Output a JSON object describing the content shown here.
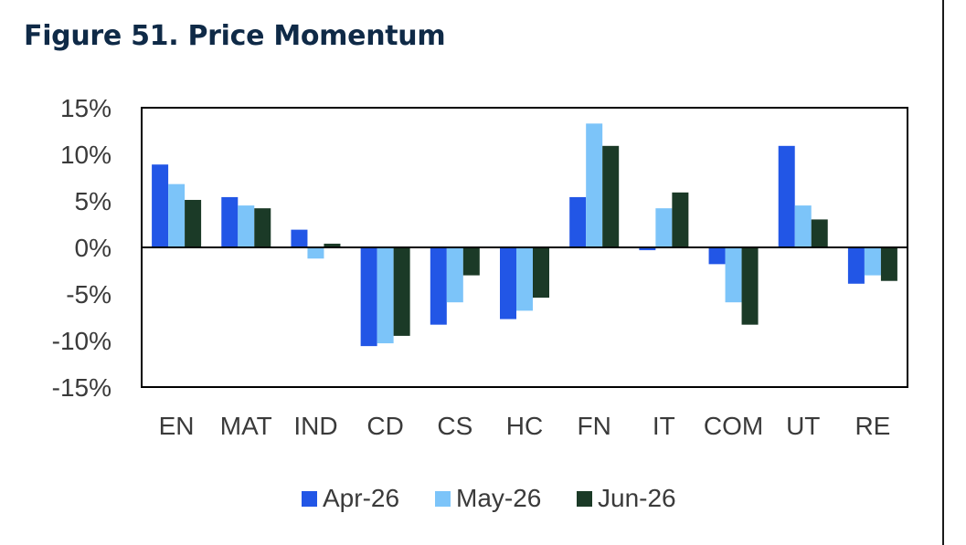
{
  "title": "Figure 51. Price Momentum",
  "colors": {
    "apr": "#2256e6",
    "may": "#7cc4f9",
    "jun": "#1b3a27",
    "axis": "#000000"
  },
  "chart_data": {
    "type": "bar",
    "title": "Figure 51. Price Momentum",
    "xlabel": "",
    "ylabel": "",
    "ylim": [
      -15,
      15
    ],
    "yticks": [
      15,
      10,
      5,
      0,
      -5,
      -10,
      -15
    ],
    "ytick_labels": [
      "15%",
      "10%",
      "5%",
      "0%",
      "-5%",
      "-10%",
      "-15%"
    ],
    "categories": [
      "EN",
      "MAT",
      "IND",
      "CD",
      "CS",
      "HC",
      "FN",
      "IT",
      "COM",
      "UT",
      "RE"
    ],
    "series": [
      {
        "name": "Apr-26",
        "color": "#2256e6",
        "values": [
          8.9,
          5.4,
          1.9,
          -10.6,
          -8.3,
          -7.7,
          5.4,
          -0.3,
          -1.8,
          10.9,
          -3.9
        ]
      },
      {
        "name": "May-26",
        "color": "#7cc4f9",
        "values": [
          6.8,
          4.5,
          -1.2,
          -10.3,
          -5.9,
          -6.8,
          13.3,
          4.2,
          -5.9,
          4.5,
          -3.0
        ]
      },
      {
        "name": "Jun-26",
        "color": "#1b3a27",
        "values": [
          5.1,
          4.2,
          0.4,
          -9.5,
          -3.0,
          -5.4,
          10.9,
          5.9,
          -8.3,
          3.0,
          -3.6
        ]
      }
    ],
    "grid": false,
    "legend": "bottom"
  }
}
